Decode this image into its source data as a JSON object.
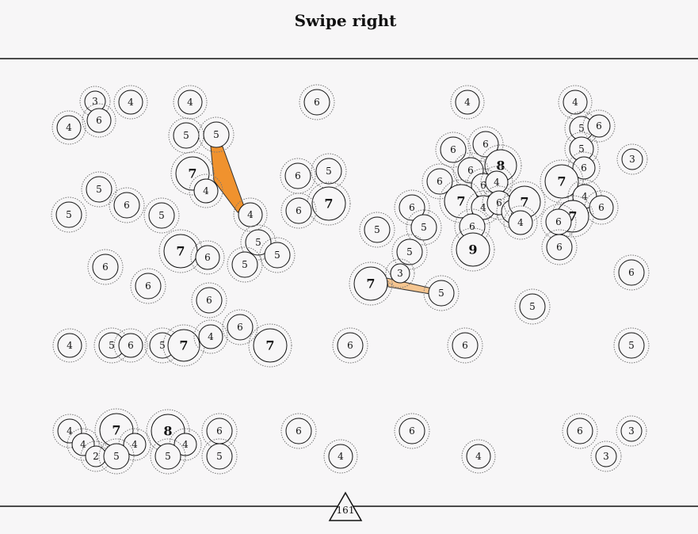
{
  "title": "Swipe right",
  "nodes": [
    "3",
    "4",
    "6",
    "4",
    "4",
    "6",
    "4",
    "4",
    "5",
    "5",
    "7",
    "4",
    "4",
    "5",
    "6",
    "5",
    "6",
    "3",
    "6",
    "5",
    "7",
    "6",
    "5",
    "6",
    "5",
    "5",
    "6",
    "6",
    "8",
    "6",
    "6",
    "6",
    "4",
    "7",
    "4",
    "6",
    "5",
    "7",
    "4",
    "6",
    "9",
    "7",
    "4",
    "6",
    "7",
    "6",
    "6",
    "6",
    "5",
    "5",
    "5",
    "7",
    "6",
    "5",
    "5",
    "5",
    "6",
    "6",
    "6",
    "7",
    "3",
    "5",
    "5",
    "6",
    "4",
    "5",
    "6",
    "5",
    "7",
    "4",
    "6",
    "7",
    "6",
    "6",
    "5",
    "4",
    "7",
    "4",
    "4",
    "2",
    "5",
    "8",
    "4",
    "5",
    "6",
    "5",
    "6",
    "4",
    "6",
    "4",
    "6",
    "3",
    "3"
  ],
  "score": "161"
}
